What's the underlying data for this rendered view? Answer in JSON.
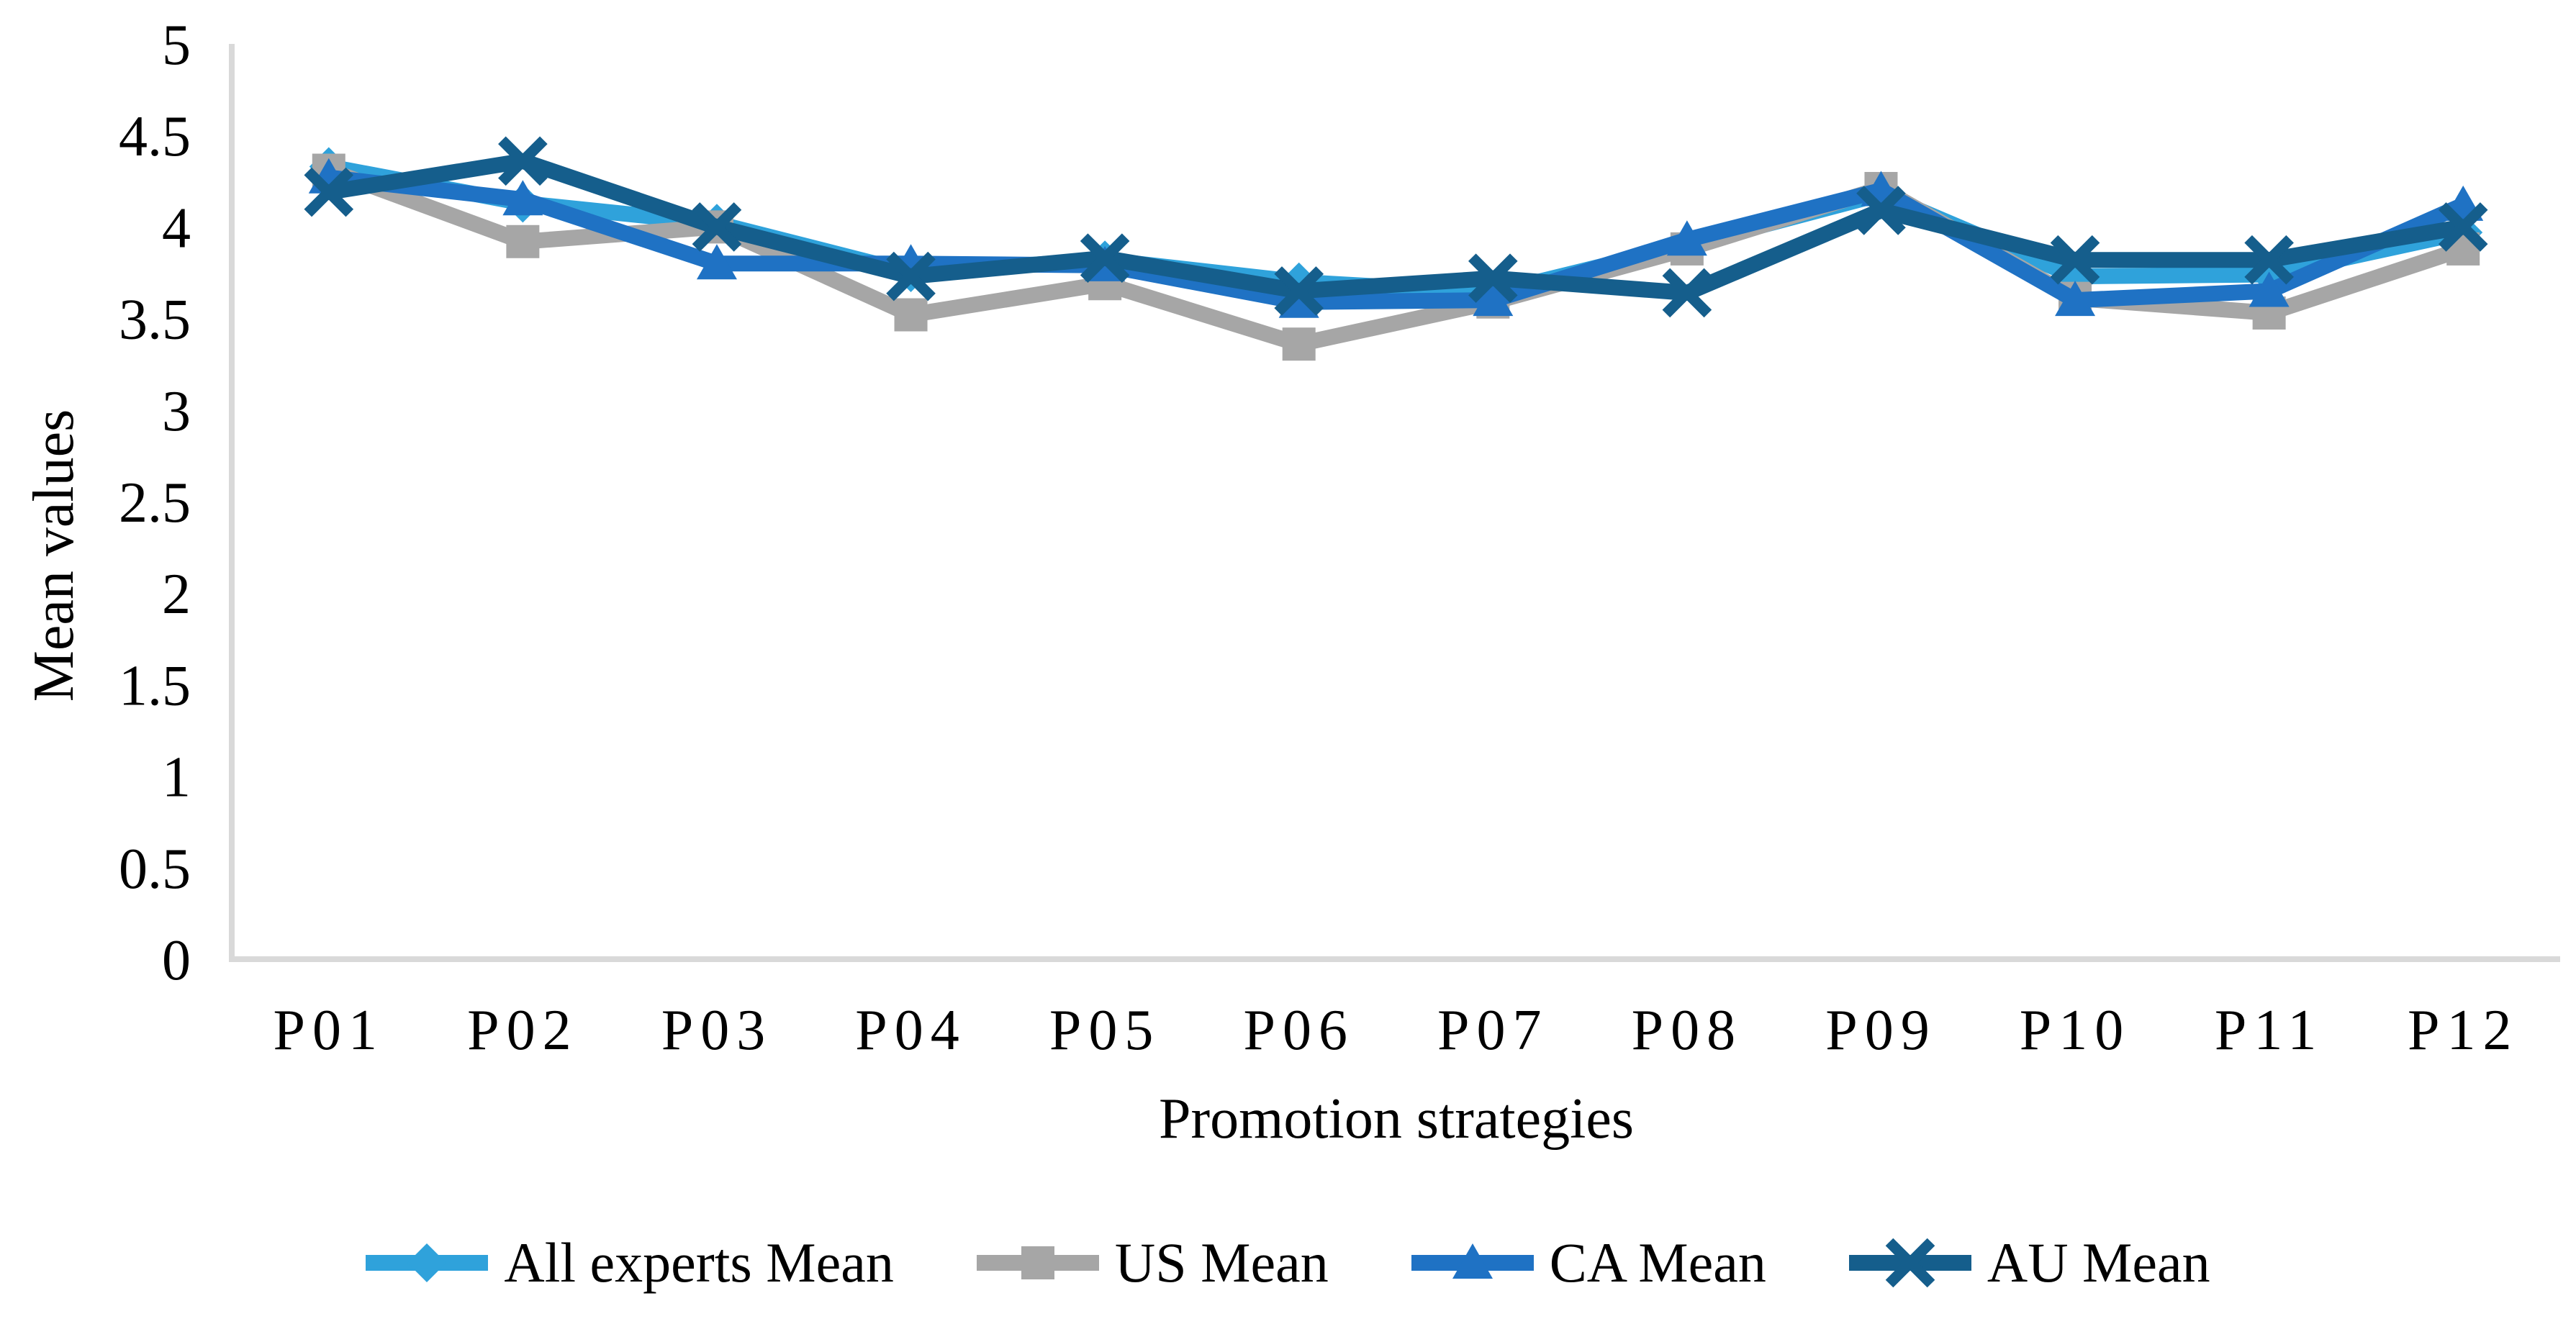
{
  "chart_data": {
    "type": "line",
    "title": "",
    "xlabel": "Promotion strategies",
    "ylabel": "Mean values",
    "categories": [
      "P01",
      "P02",
      "P03",
      "P04",
      "P05",
      "P06",
      "P07",
      "P08",
      "P09",
      "P10",
      "P11",
      "P12"
    ],
    "series": [
      {
        "name": "All experts Mean",
        "marker": "diamond",
        "color": "#2FA2DB",
        "values": [
          4.33,
          4.13,
          4.02,
          3.75,
          3.82,
          3.7,
          3.64,
          3.9,
          4.18,
          3.73,
          3.74,
          3.97
        ]
      },
      {
        "name": "US Mean",
        "marker": "square",
        "color": "#A6A6A6",
        "values": [
          4.31,
          3.92,
          4.0,
          3.52,
          3.69,
          3.36,
          3.59,
          3.88,
          4.21,
          3.61,
          3.53,
          3.88
        ]
      },
      {
        "name": "CA Mean",
        "marker": "triangle",
        "color": "#1F72C4",
        "values": [
          4.27,
          4.15,
          3.8,
          3.8,
          3.79,
          3.59,
          3.6,
          3.93,
          4.2,
          3.6,
          3.65,
          4.12
        ]
      },
      {
        "name": "AU Mean",
        "marker": "x",
        "color": "#155E8C",
        "values": [
          4.19,
          4.36,
          4.0,
          3.73,
          3.83,
          3.65,
          3.72,
          3.64,
          4.09,
          3.82,
          3.82,
          4.0
        ]
      }
    ],
    "ylim": [
      0,
      5
    ],
    "ytick_step": 0.5,
    "yticklabels": [
      "0",
      "0.5",
      "1",
      "1.5",
      "2",
      "2.5",
      "3",
      "3.5",
      "4",
      "4.5",
      "5"
    ],
    "grid": false,
    "legend_position": "bottom",
    "axis_color": "#D9D9D9",
    "text_color": "#000000"
  }
}
